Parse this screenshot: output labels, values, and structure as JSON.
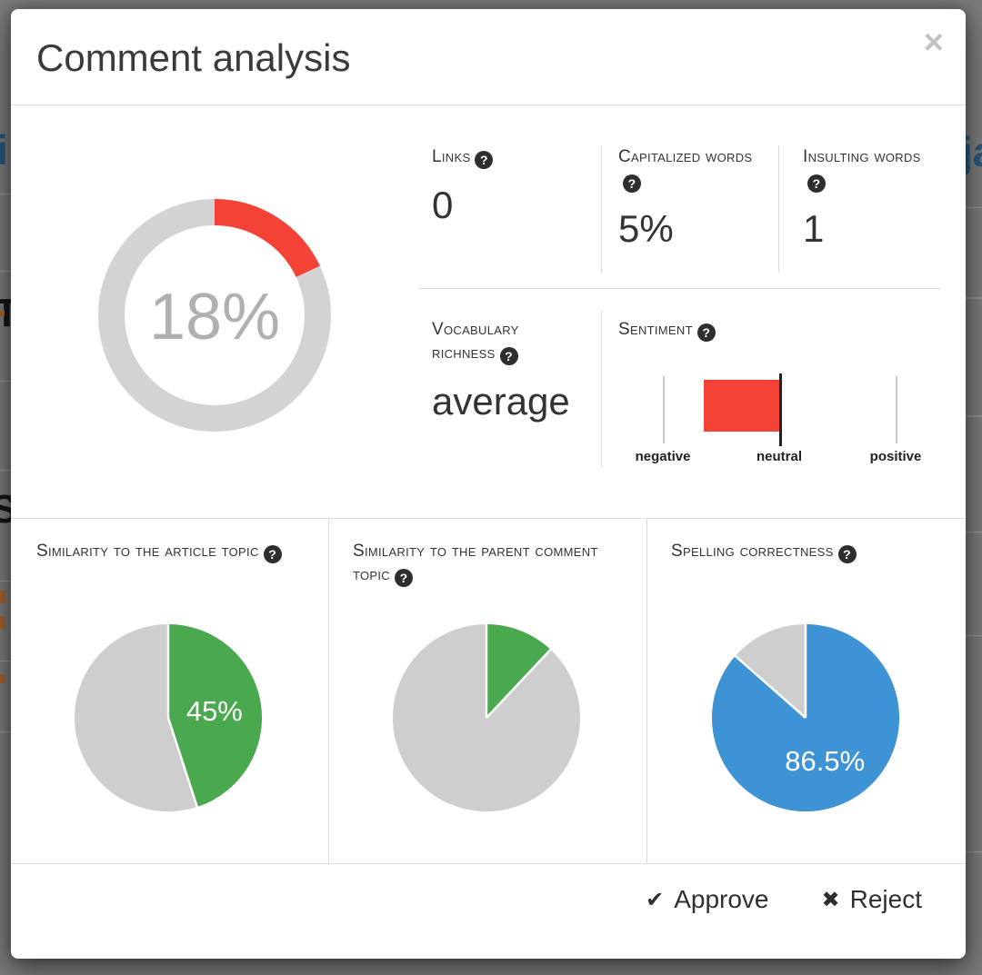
{
  "modal": {
    "title": "Comment analysis"
  },
  "icons": {
    "close": "×",
    "help": "?",
    "approve": "✔",
    "reject": "✖"
  },
  "stats": {
    "links": {
      "label": "Links",
      "value": "0"
    },
    "capitalized_words": {
      "label": "Capitalized words",
      "value": "5%"
    },
    "insulting_words": {
      "label": "Insulting words",
      "value": "1"
    },
    "vocabulary_richness": {
      "label": "Vocabulary richness",
      "value": "average"
    },
    "sentiment": {
      "label": "Sentiment"
    }
  },
  "bottom": {
    "similarity_article": {
      "label": "Similarity to the article topic"
    },
    "similarity_parent": {
      "label": "Similarity to the parent comment topic"
    },
    "spelling": {
      "label": "Spelling correctness"
    }
  },
  "footer": {
    "approve_label": "Approve",
    "reject_label": "Reject"
  },
  "background": {
    "top_left_fragment": "i",
    "top_right_fragment": "ja",
    "mid_left_fragment": "T",
    "lower_left_fragment": "S"
  },
  "chart_data": [
    {
      "id": "overall_score",
      "type": "donut",
      "value": 18,
      "label": "18%",
      "color": "#f44236",
      "track_color": "#d3d3d3",
      "text_color": "#b0b0b0"
    },
    {
      "id": "sentiment",
      "type": "bar",
      "scale": [
        "negative",
        "neutral",
        "positive"
      ],
      "bar_from": -0.65,
      "bar_to": 0,
      "color": "#f44236"
    },
    {
      "id": "similarity_article",
      "type": "pie",
      "value": 45,
      "label": "45%",
      "color": "#4aa84f",
      "track_color": "#cecece"
    },
    {
      "id": "similarity_parent",
      "type": "pie",
      "value": 12,
      "label": "",
      "color": "#4aa84f",
      "track_color": "#cecece"
    },
    {
      "id": "spelling",
      "type": "pie",
      "value": 86.5,
      "label": "86.5%",
      "color": "#3e93d4",
      "track_color": "#cecece"
    }
  ]
}
